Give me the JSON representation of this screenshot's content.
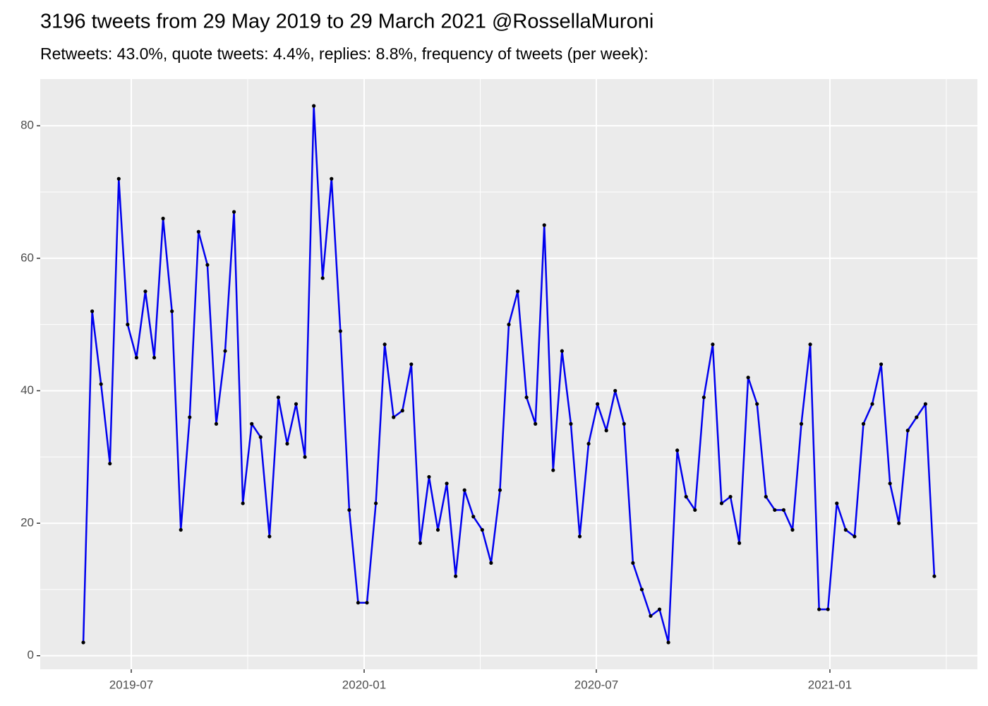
{
  "chart_data": {
    "type": "line",
    "title": "3196 tweets from 29 May 2019 to 29 March 2021 @RossellaMuroni",
    "subtitle": "Retweets: 43.0%, quote tweets: 4.4%, replies: 8.8%, frequency of tweets (per week):",
    "x": [
      0,
      1,
      2,
      3,
      4,
      5,
      6,
      7,
      8,
      9,
      10,
      11,
      12,
      13,
      14,
      15,
      16,
      17,
      18,
      19,
      20,
      21,
      22,
      23,
      24,
      25,
      26,
      27,
      28,
      29,
      30,
      31,
      32,
      33,
      34,
      35,
      36,
      37,
      38,
      39,
      40,
      41,
      42,
      43,
      44,
      45,
      46,
      47,
      48,
      49,
      50,
      51,
      52,
      53,
      54,
      55,
      56,
      57,
      58,
      59,
      60,
      61,
      62,
      63,
      64,
      65,
      66,
      67,
      68,
      69,
      70,
      71,
      72,
      73,
      74,
      75,
      76,
      77,
      78,
      79,
      80,
      81,
      82,
      83,
      84,
      85,
      86,
      87,
      88,
      89,
      90,
      91,
      92,
      93,
      94,
      95,
      96
    ],
    "series": [
      {
        "color": "#0000ee",
        "point_color": "#000000",
        "values": [
          2,
          52,
          41,
          29,
          72,
          50,
          45,
          55,
          45,
          66,
          52,
          19,
          36,
          64,
          59,
          35,
          46,
          67,
          23,
          35,
          33,
          18,
          39,
          32,
          38,
          30,
          83,
          57,
          72,
          49,
          22,
          8,
          8,
          23,
          47,
          36,
          37,
          44,
          17,
          27,
          19,
          26,
          12,
          25,
          21,
          19,
          14,
          25,
          50,
          55,
          39,
          35,
          65,
          28,
          46,
          35,
          18,
          32,
          38,
          34,
          40,
          35,
          14,
          10,
          6,
          7,
          2,
          31,
          24,
          22,
          39,
          47,
          23,
          24,
          17,
          42,
          38,
          24,
          22,
          22,
          19,
          35,
          47,
          7,
          7,
          23,
          19,
          18,
          35,
          38,
          44,
          26,
          20,
          34,
          36,
          38,
          12
        ]
      }
    ],
    "xlim": [
      -4.86,
      100.86
    ],
    "xticks": [
      {
        "value": 5.41,
        "label": "2019-07"
      },
      {
        "value": 31.68,
        "label": "2020-01"
      },
      {
        "value": 57.87,
        "label": "2020-07"
      },
      {
        "value": 84.22,
        "label": "2021-01"
      }
    ],
    "ylim": [
      -2.05,
      87.05
    ],
    "yticks": [
      0,
      20,
      40,
      60,
      80
    ],
    "grid": true
  }
}
